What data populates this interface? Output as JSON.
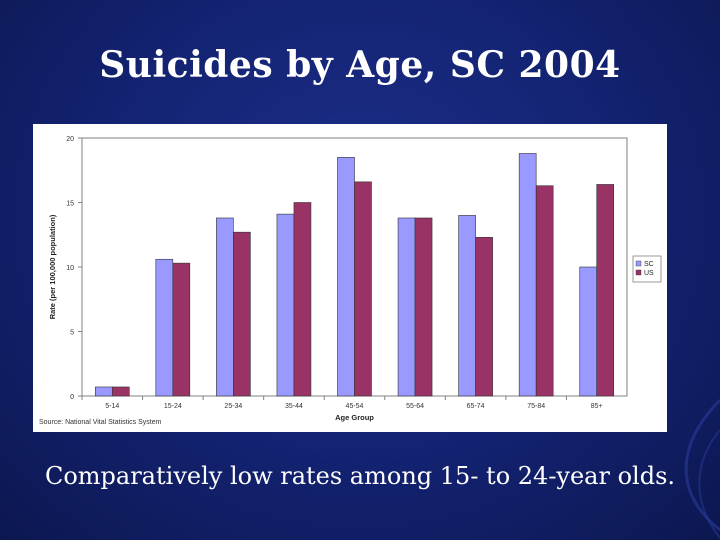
{
  "slide": {
    "title": "Suicides by Age, SC 2004",
    "caption": "Comparatively low rates among 15- to 24-year olds."
  },
  "colors": {
    "background": "#132270",
    "sc": "#9999ff",
    "us": "#993366"
  },
  "chart_data": {
    "type": "bar",
    "categories": [
      "5-14",
      "15-24",
      "25-34",
      "35-44",
      "45-54",
      "55-64",
      "65-74",
      "75-84",
      "85+"
    ],
    "series": [
      {
        "name": "SC",
        "values": [
          0.7,
          10.6,
          13.8,
          14.1,
          18.5,
          13.8,
          14.0,
          18.8,
          10.0
        ]
      },
      {
        "name": "US",
        "values": [
          0.7,
          10.3,
          12.7,
          15.0,
          16.6,
          13.8,
          12.3,
          16.3,
          16.4
        ]
      }
    ],
    "xlabel": "Age Group",
    "ylabel": "Rate (per 100,000 population)",
    "ylim": [
      0,
      20
    ],
    "yticks": [
      0,
      5,
      10,
      15,
      20
    ],
    "legend": "right",
    "grid": false,
    "source": "Source: National Vital Statistics System"
  }
}
